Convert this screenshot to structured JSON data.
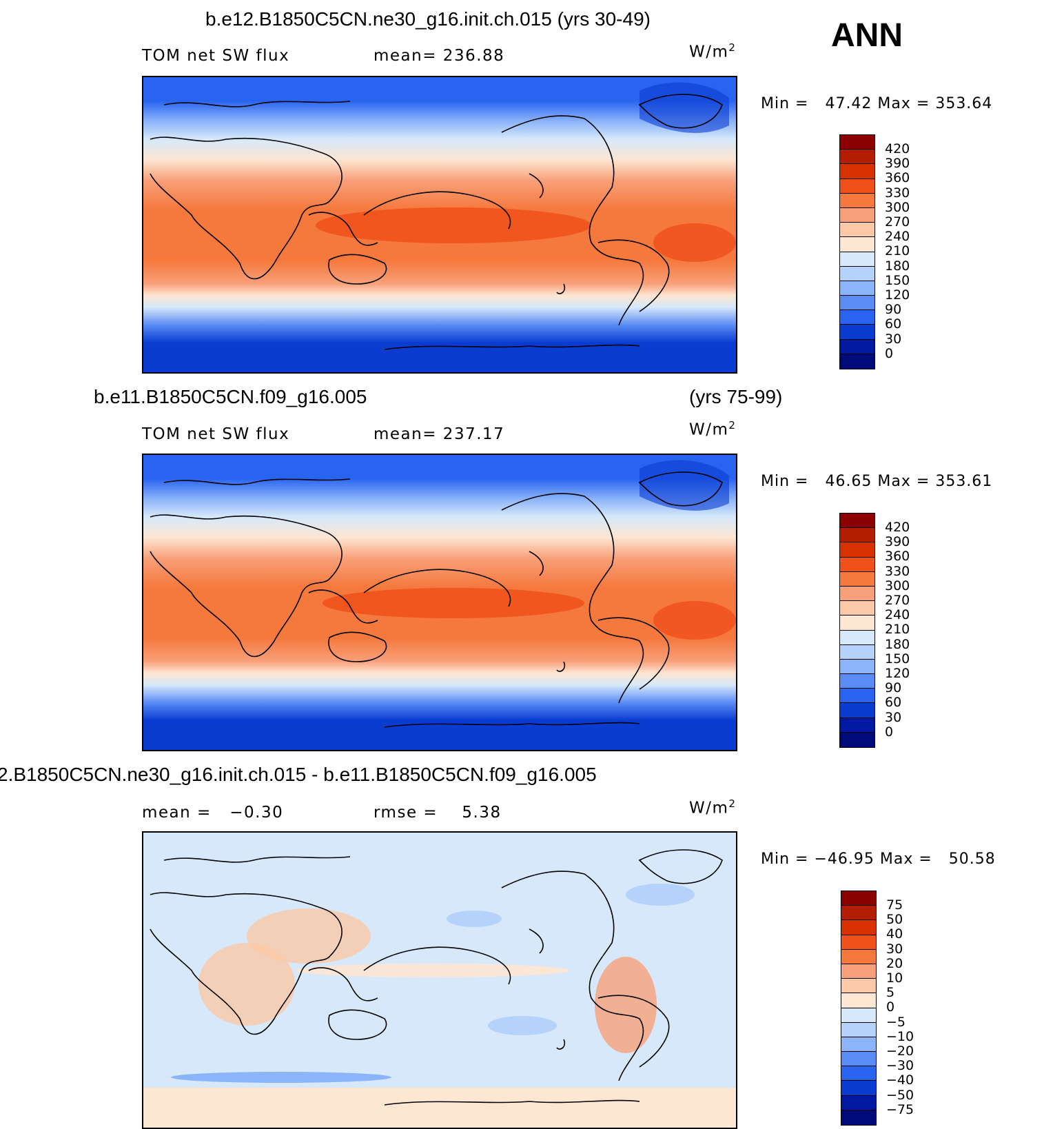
{
  "season": "ANN",
  "units": "W/m",
  "units_sup": "2",
  "panels": [
    {
      "title": "b.e12.B1850C5CN.ne30_g16.init.ch.015 (yrs 30-49)",
      "title_right": "",
      "left_label": "TOM net SW flux",
      "mid_label": "mean= 236.88",
      "minmax": "Min =   47.42 Max = 353.64",
      "levels": [
        "420",
        "390",
        "360",
        "330",
        "300",
        "270",
        "240",
        "210",
        "180",
        "150",
        "120",
        "90",
        "60",
        "30",
        "0"
      ],
      "colors": [
        "#8b0000",
        "#b41e00",
        "#d73200",
        "#f0501a",
        "#f5783c",
        "#f8a07a",
        "#fbc8a8",
        "#fde6d2",
        "#d6e8fa",
        "#b4d2fa",
        "#8cb4fa",
        "#5a8cf5",
        "#2864f0",
        "#0a3cd2",
        "#0019a0",
        "#000a78"
      ]
    },
    {
      "title": "b.e11.B1850C5CN.f09_g16.005",
      "title_right": "(yrs 75-99)",
      "left_label": "TOM net SW flux",
      "mid_label": "mean= 237.17",
      "minmax": "Min =   46.65 Max = 353.61",
      "levels": [
        "420",
        "390",
        "360",
        "330",
        "300",
        "270",
        "240",
        "210",
        "180",
        "150",
        "120",
        "90",
        "60",
        "30",
        "0"
      ],
      "colors": [
        "#8b0000",
        "#b41e00",
        "#d73200",
        "#f0501a",
        "#f5783c",
        "#f8a07a",
        "#fbc8a8",
        "#fde6d2",
        "#d6e8fa",
        "#b4d2fa",
        "#8cb4fa",
        "#5a8cf5",
        "#2864f0",
        "#0a3cd2",
        "#0019a0",
        "#000a78"
      ]
    },
    {
      "title": "2.B1850C5CN.ne30_g16.init.ch.015 - b.e11.B1850C5CN.f09_g16.005",
      "title_right": "",
      "left_label": "mean =   −0.30",
      "mid_label": "rmse =    5.38",
      "minmax": "Min = −46.95 Max =   50.58",
      "levels": [
        "75",
        "50",
        "40",
        "30",
        "20",
        "10",
        "5",
        "0",
        "−5",
        "−10",
        "−20",
        "−30",
        "−40",
        "−50",
        "−75"
      ],
      "colors": [
        "#8b0000",
        "#b41e00",
        "#d73200",
        "#f0501a",
        "#f5783c",
        "#f8a07a",
        "#fbc8a8",
        "#fde6d2",
        "#d6e8fa",
        "#b4d2fa",
        "#8cb4fa",
        "#5a8cf5",
        "#2864f0",
        "#0a3cd2",
        "#0019a0",
        "#000a78"
      ]
    }
  ]
}
